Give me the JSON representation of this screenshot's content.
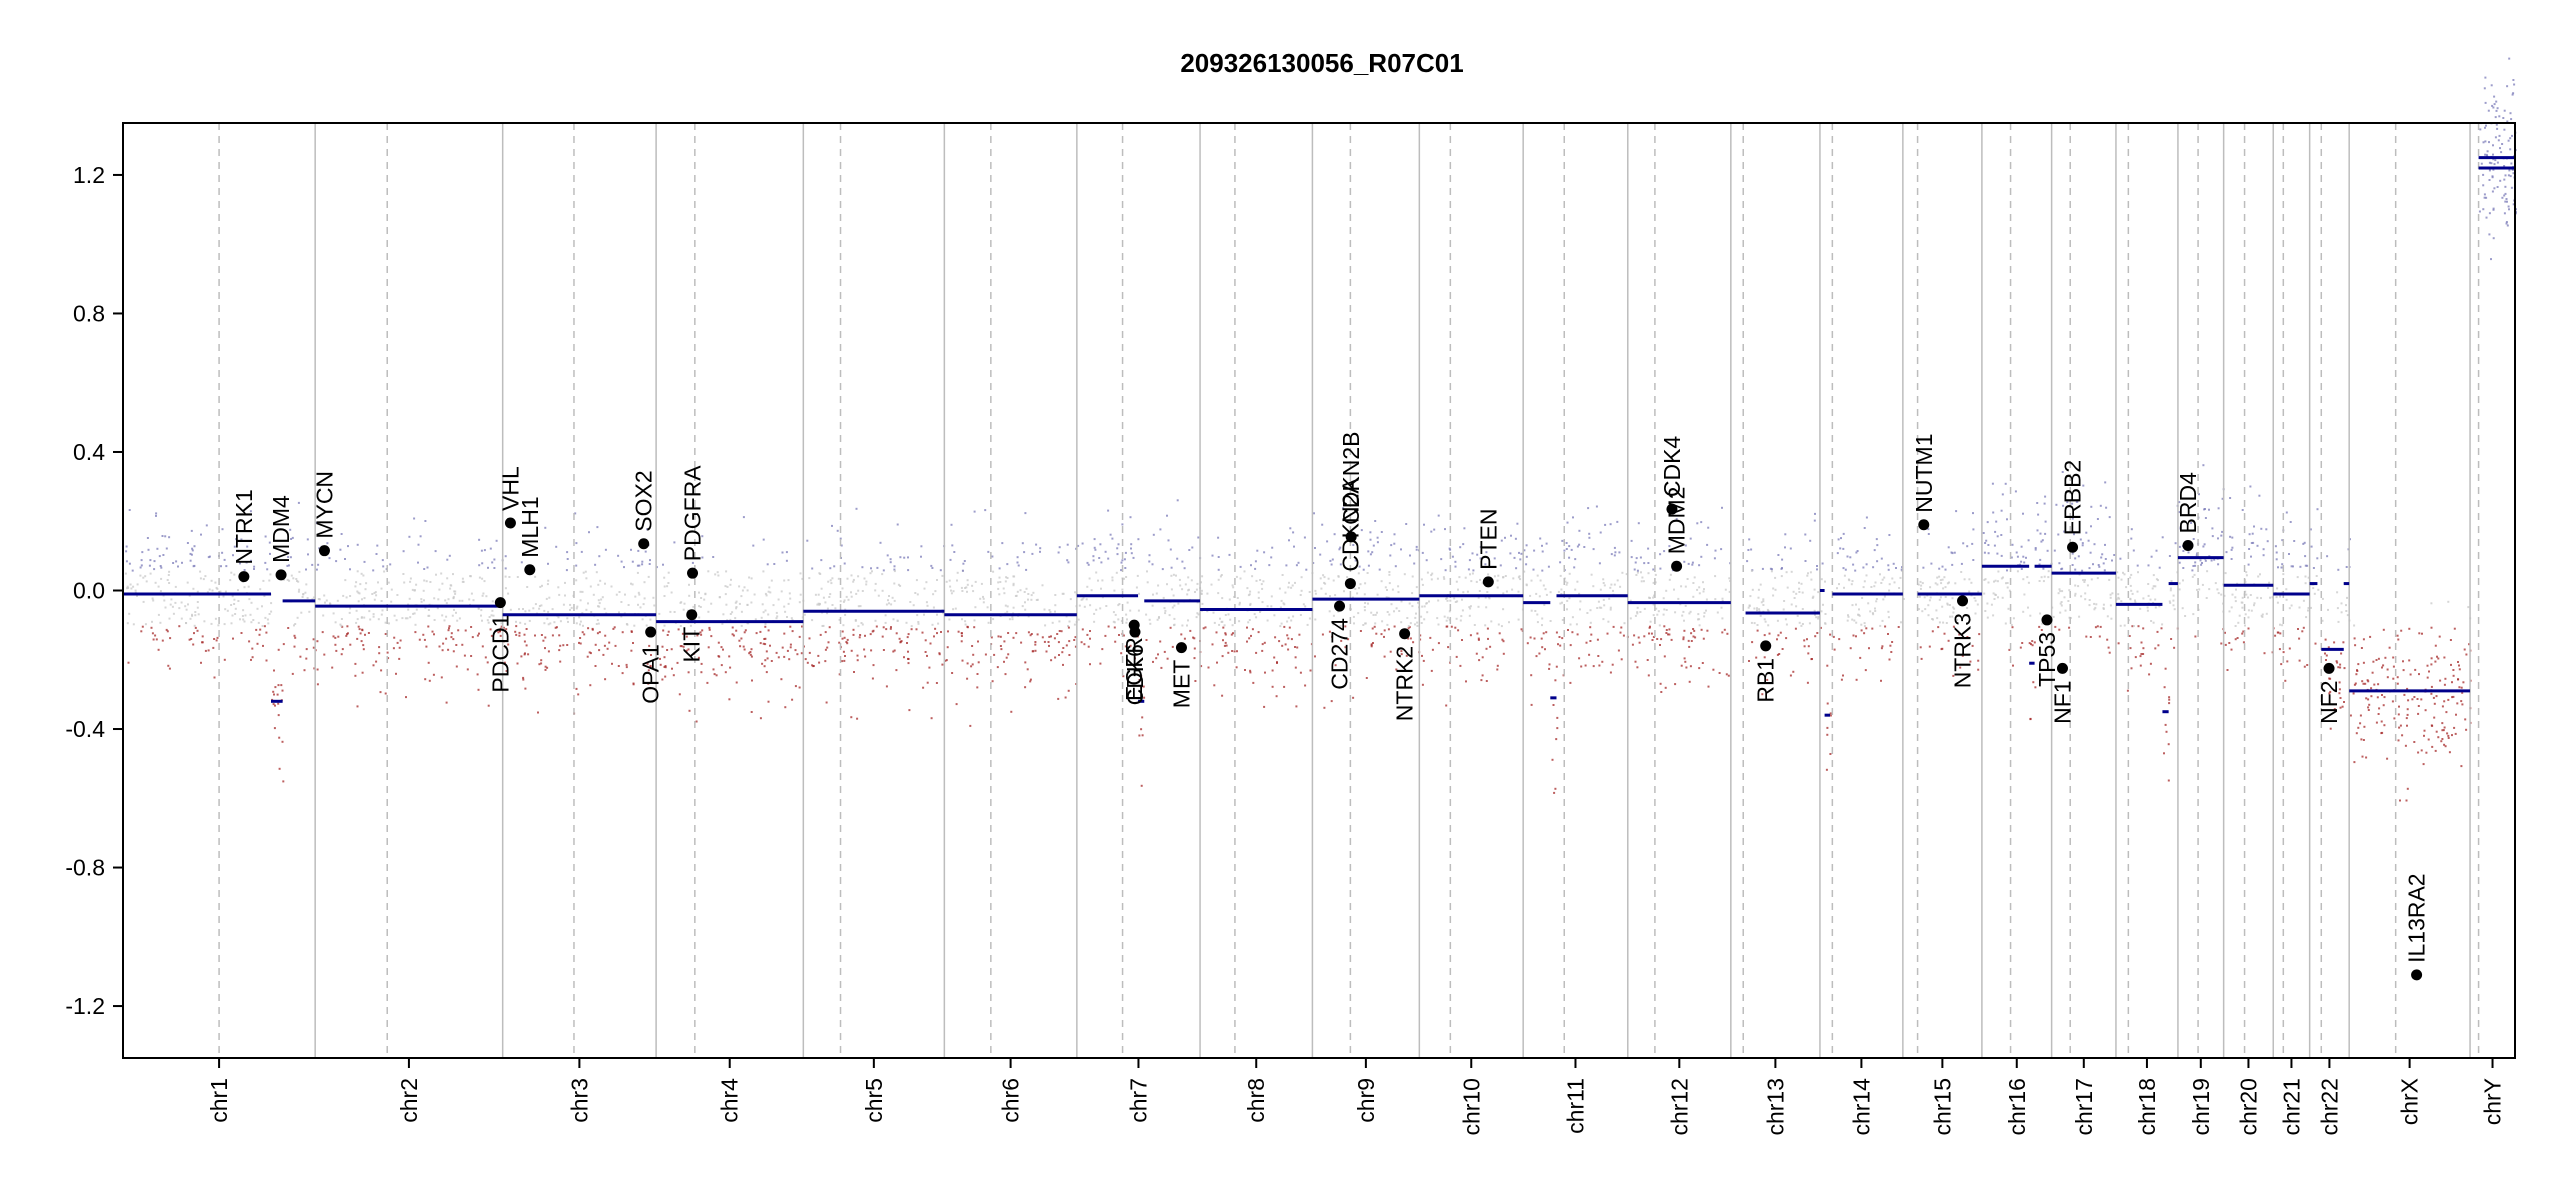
{
  "chart_data": {
    "type": "scatter",
    "title": "209326130056_R07C01",
    "xlabel": "",
    "ylabel": "",
    "ylim": [
      -1.35,
      1.35
    ],
    "y_ticks": [
      {
        "value": 1.2,
        "label": "1.2"
      },
      {
        "value": 0.8,
        "label": "0.8"
      },
      {
        "value": 0.4,
        "label": "0.4"
      },
      {
        "value": 0.0,
        "label": "0.0"
      },
      {
        "value": -0.4,
        "label": "-0.4"
      },
      {
        "value": -0.8,
        "label": "-0.8"
      },
      {
        "value": -1.2,
        "label": "-1.2"
      }
    ],
    "grid": false,
    "legend": "none",
    "colors": {
      "segment": "#00008b",
      "gain": "#7b7bb8",
      "neutral": "#c8c8c8",
      "loss": "#a52a2a",
      "gene": "#000000",
      "boundary": "#bdbdbd"
    },
    "chromosomes": [
      {
        "name": "chr1",
        "start": 0,
        "end": 248,
        "centromere": 124
      },
      {
        "name": "chr2",
        "start": 248,
        "end": 490,
        "centromere": 341
      },
      {
        "name": "chr3",
        "start": 490,
        "end": 688,
        "centromere": 582
      },
      {
        "name": "chr4",
        "start": 688,
        "end": 878,
        "centromere": 738
      },
      {
        "name": "chr5",
        "start": 878,
        "end": 1060,
        "centromere": 926
      },
      {
        "name": "chr6",
        "start": 1060,
        "end": 1231,
        "centromere": 1120
      },
      {
        "name": "chr7",
        "start": 1231,
        "end": 1390,
        "centromere": 1290
      },
      {
        "name": "chr8",
        "start": 1390,
        "end": 1535,
        "centromere": 1435
      },
      {
        "name": "chr9",
        "start": 1535,
        "end": 1673,
        "centromere": 1584
      },
      {
        "name": "chr10",
        "start": 1673,
        "end": 1807,
        "centromere": 1713
      },
      {
        "name": "chr11",
        "start": 1807,
        "end": 1942,
        "centromere": 1860
      },
      {
        "name": "chr12",
        "start": 1942,
        "end": 2075,
        "centromere": 1977
      },
      {
        "name": "chr13",
        "start": 2075,
        "end": 2190,
        "centromere": 2091
      },
      {
        "name": "chr14",
        "start": 2190,
        "end": 2297,
        "centromere": 2206
      },
      {
        "name": "chr15",
        "start": 2297,
        "end": 2399,
        "centromere": 2316
      },
      {
        "name": "chr16",
        "start": 2399,
        "end": 2489,
        "centromere": 2436
      },
      {
        "name": "chr17",
        "start": 2489,
        "end": 2572,
        "centromere": 2513
      },
      {
        "name": "chr18",
        "start": 2572,
        "end": 2652,
        "centromere": 2588
      },
      {
        "name": "chr19",
        "start": 2652,
        "end": 2711,
        "centromere": 2678
      },
      {
        "name": "chr20",
        "start": 2711,
        "end": 2775,
        "centromere": 2738
      },
      {
        "name": "chr21",
        "start": 2775,
        "end": 2822,
        "centromere": 2788
      },
      {
        "name": "chr22",
        "start": 2822,
        "end": 2873,
        "centromere": 2837
      },
      {
        "name": "chrX",
        "start": 2873,
        "end": 3029,
        "centromere": 2933
      },
      {
        "name": "chrY",
        "start": 3029,
        "end": 3087,
        "centromere": 3040
      }
    ],
    "segments": [
      {
        "x0": 0,
        "x1": 191,
        "y": -0.01
      },
      {
        "x0": 191,
        "x1": 206,
        "y": -0.32
      },
      {
        "x0": 206,
        "x1": 248,
        "y": -0.03
      },
      {
        "x0": 248,
        "x1": 490,
        "y": -0.045
      },
      {
        "x0": 490,
        "x1": 688,
        "y": -0.07
      },
      {
        "x0": 688,
        "x1": 878,
        "y": -0.09
      },
      {
        "x0": 878,
        "x1": 1060,
        "y": -0.06
      },
      {
        "x0": 1060,
        "x1": 1231,
        "y": -0.07
      },
      {
        "x0": 1231,
        "x1": 1310,
        "y": -0.015
      },
      {
        "x0": 1310,
        "x1": 1318,
        "y": -0.32
      },
      {
        "x0": 1318,
        "x1": 1390,
        "y": -0.03
      },
      {
        "x0": 1390,
        "x1": 1535,
        "y": -0.055
      },
      {
        "x0": 1535,
        "x1": 1673,
        "y": -0.025
      },
      {
        "x0": 1673,
        "x1": 1807,
        "y": -0.015
      },
      {
        "x0": 1807,
        "x1": 1842,
        "y": -0.035
      },
      {
        "x0": 1842,
        "x1": 1850,
        "y": -0.31
      },
      {
        "x0": 1850,
        "x1": 1942,
        "y": -0.015
      },
      {
        "x0": 1942,
        "x1": 2075,
        "y": -0.035
      },
      {
        "x0": 2094,
        "x1": 2190,
        "y": -0.065
      },
      {
        "x0": 2190,
        "x1": 2196,
        "y": 0.0
      },
      {
        "x0": 2196,
        "x1": 2203,
        "y": -0.36
      },
      {
        "x0": 2206,
        "x1": 2297,
        "y": -0.01
      },
      {
        "x0": 2316,
        "x1": 2399,
        "y": -0.01
      },
      {
        "x0": 2399,
        "x1": 2460,
        "y": 0.07
      },
      {
        "x0": 2460,
        "x1": 2467,
        "y": -0.21
      },
      {
        "x0": 2467,
        "x1": 2489,
        "y": 0.07
      },
      {
        "x0": 2489,
        "x1": 2572,
        "y": 0.05
      },
      {
        "x0": 2572,
        "x1": 2632,
        "y": -0.04
      },
      {
        "x0": 2632,
        "x1": 2640,
        "y": -0.35
      },
      {
        "x0": 2640,
        "x1": 2652,
        "y": 0.02
      },
      {
        "x0": 2652,
        "x1": 2711,
        "y": 0.095
      },
      {
        "x0": 2711,
        "x1": 2775,
        "y": 0.015
      },
      {
        "x0": 2775,
        "x1": 2822,
        "y": -0.01
      },
      {
        "x0": 2822,
        "x1": 2832,
        "y": 0.02
      },
      {
        "x0": 2837,
        "x1": 2866,
        "y": -0.17
      },
      {
        "x0": 2866,
        "x1": 2873,
        "y": 0.02
      },
      {
        "x0": 2873,
        "x1": 3029,
        "y": -0.29
      },
      {
        "x0": 3040,
        "x1": 3087,
        "y": 1.22
      },
      {
        "x0": 3040,
        "x1": 3087,
        "y": 1.25
      }
    ],
    "genes": [
      {
        "name": "NTRK1",
        "x": 156,
        "y": 0.04,
        "label_side": "above"
      },
      {
        "name": "MDM4",
        "x": 204,
        "y": 0.045,
        "label_side": "above"
      },
      {
        "name": "MYCN",
        "x": 260,
        "y": 0.115,
        "label_side": "above"
      },
      {
        "name": "PDCD1",
        "x": 487,
        "y": -0.035,
        "label_side": "below"
      },
      {
        "name": "VHL",
        "x": 500,
        "y": 0.195,
        "label_side": "above"
      },
      {
        "name": "MLH1",
        "x": 525,
        "y": 0.06,
        "label_side": "above"
      },
      {
        "name": "SOX2",
        "x": 672,
        "y": 0.135,
        "label_side": "above"
      },
      {
        "name": "OPA1",
        "x": 681,
        "y": -0.12,
        "label_side": "below"
      },
      {
        "name": "KIT",
        "x": 734,
        "y": -0.07,
        "label_side": "below"
      },
      {
        "name": "PDGFRA",
        "x": 735,
        "y": 0.05,
        "label_side": "above"
      },
      {
        "name": "EGFR",
        "x": 1305,
        "y": -0.1,
        "label_side": "below"
      },
      {
        "name": "CDK6",
        "x": 1306,
        "y": -0.12,
        "label_side": "below"
      },
      {
        "name": "MET",
        "x": 1366,
        "y": -0.165,
        "label_side": "below"
      },
      {
        "name": "CD274",
        "x": 1570,
        "y": -0.045,
        "label_side": "below"
      },
      {
        "name": "CDKN2A",
        "x": 1584,
        "y": 0.02,
        "label_side": "above"
      },
      {
        "name": "CDKN2B",
        "x": 1585,
        "y": 0.155,
        "label_side": "above"
      },
      {
        "name": "NTRK2",
        "x": 1654,
        "y": -0.125,
        "label_side": "below"
      },
      {
        "name": "PTEN",
        "x": 1762,
        "y": 0.025,
        "label_side": "above"
      },
      {
        "name": "MDM2",
        "x": 2005,
        "y": 0.07,
        "label_side": "above"
      },
      {
        "name": "CDK4",
        "x": 1999,
        "y": 0.235,
        "label_side": "above"
      },
      {
        "name": "RB1",
        "x": 2120,
        "y": -0.16,
        "label_side": "below"
      },
      {
        "name": "NUTM1",
        "x": 2324,
        "y": 0.19,
        "label_side": "above"
      },
      {
        "name": "NTRK3",
        "x": 2374,
        "y": -0.03,
        "label_side": "below"
      },
      {
        "name": "TP53",
        "x": 2483,
        "y": -0.085,
        "label_side": "below"
      },
      {
        "name": "NF1",
        "x": 2503,
        "y": -0.225,
        "label_side": "below"
      },
      {
        "name": "ERBB2",
        "x": 2516,
        "y": 0.125,
        "label_side": "above"
      },
      {
        "name": "BRD4",
        "x": 2665,
        "y": 0.13,
        "label_side": "above"
      },
      {
        "name": "NF2",
        "x": 2847,
        "y": -0.225,
        "label_side": "below"
      },
      {
        "name": "IL13RA2",
        "x": 2960,
        "y": -1.11,
        "label_side": "above"
      }
    ]
  }
}
